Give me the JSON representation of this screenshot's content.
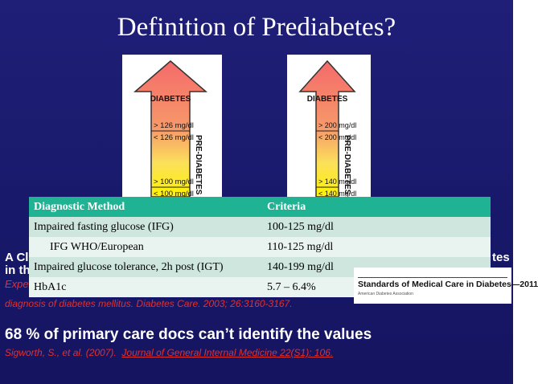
{
  "title": "Definition of Prediabetes?",
  "arrows": [
    {
      "top": "DIABETES",
      "above": "> 126 mg/dl",
      "below": "< 126 mg/dl",
      "side": "PRE-DIABETES",
      "pre_above": "> 100 mg/dl",
      "pre_below": "< 100 mg/dl"
    },
    {
      "top": "DIABETES",
      "above": "> 200 mg/dl",
      "below": "< 200 mg/dl",
      "side": "PRE-DIABETES",
      "pre_above": "> 140 mg/dl",
      "pre_below": "< 140 mg/dl"
    }
  ],
  "table": {
    "header": [
      "Diagnostic Method",
      "Criteria"
    ],
    "rows": [
      [
        "Impaired fasting glucose (IFG)",
        "100-125 mg/dl"
      ],
      [
        "IFG WHO/European",
        "110-125 mg/dl"
      ],
      [
        "Impaired glucose tolerance, 2h post (IGT)",
        "140-199 mg/dl"
      ],
      [
        "HbA1c",
        "5.7 – 6.4%"
      ]
    ]
  },
  "fragments": {
    "line1": "A Cl",
    "line2": "in th",
    "line3": "Expe",
    "right": "tes",
    "reference": "diagnosis of diabetes mellitus. Diabetes Care. 2003; 26:3160-3167."
  },
  "standards": {
    "title": "Standards of Medical Care in Diabetes—2011",
    "publisher": "American Diabetes Association"
  },
  "statement": "68 % of primary care docs can’t identify the values",
  "citation": {
    "authors": "Sigworth, S., et al. (2007).",
    "journal": "Journal of General Internal Medicine 22(S1): 106."
  }
}
